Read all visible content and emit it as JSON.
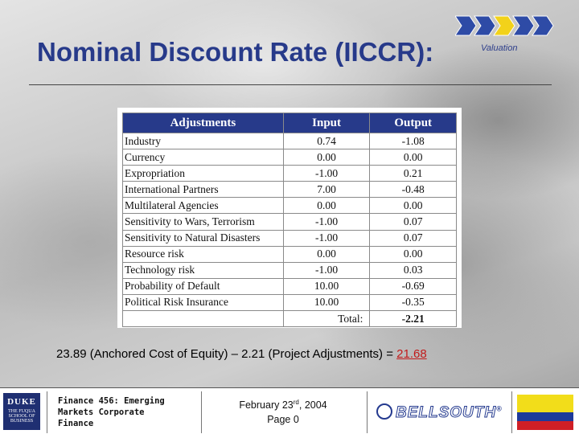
{
  "header": {
    "title": "Nominal Discount Rate (IICCR):",
    "section": "Valuation",
    "nav_colors": [
      "#2e4ba6",
      "#2e4ba6",
      "#f2d21a",
      "#2e4ba6",
      "#2e4ba6"
    ],
    "title_color": "#273a8a"
  },
  "table": {
    "headers": [
      "Adjustments",
      "Input",
      "Output"
    ],
    "rows": [
      {
        "label": "Industry",
        "input": "0.74",
        "output": "-1.08"
      },
      {
        "label": "Currency",
        "input": "0.00",
        "output": "0.00"
      },
      {
        "label": "Expropriation",
        "input": "-1.00",
        "output": "0.21"
      },
      {
        "label": "International Partners",
        "input": "7.00",
        "output": "-0.48"
      },
      {
        "label": "Multilateral Agencies",
        "input": "0.00",
        "output": "0.00"
      },
      {
        "label": "Sensitivity to Wars, Terrorism",
        "input": "-1.00",
        "output": "0.07"
      },
      {
        "label": "Sensitivity to Natural Disasters",
        "input": "-1.00",
        "output": "0.07"
      },
      {
        "label": "Resource risk",
        "input": "0.00",
        "output": "0.00"
      },
      {
        "label": "Technology risk",
        "input": "-1.00",
        "output": "0.03"
      },
      {
        "label": "Probability of Default",
        "input": "10.00",
        "output": "-0.69"
      },
      {
        "label": "Political Risk Insurance",
        "input": "10.00",
        "output": "-0.35"
      }
    ],
    "total": {
      "label": "Total:",
      "value": "-2.21"
    },
    "header_color": "#273a8a"
  },
  "formula": {
    "text": "23.89 (Anchored Cost of Equity) – 2.21 (Project Adjustments) = ",
    "result": "21.68",
    "result_color": "#c21a1a"
  },
  "footer": {
    "logo": {
      "word": "DUKE",
      "sub": "THE FUQUA SCHOOL OF BUSINESS",
      "icon": "duke-fuqua-logo"
    },
    "course_lines": [
      "Finance 456: Emerging",
      "Markets Corporate",
      "Finance"
    ],
    "date": {
      "prefix": "February 23",
      "suffix": "rd",
      "year": ", 2004"
    },
    "page": "Page 0",
    "brand": "BELLSOUTH",
    "brand_mark": "®",
    "flag": {
      "icon": "colombia-flag-icon",
      "colors": [
        "#f2dd1a",
        "#1e3a9a",
        "#cf1f26"
      ]
    }
  }
}
